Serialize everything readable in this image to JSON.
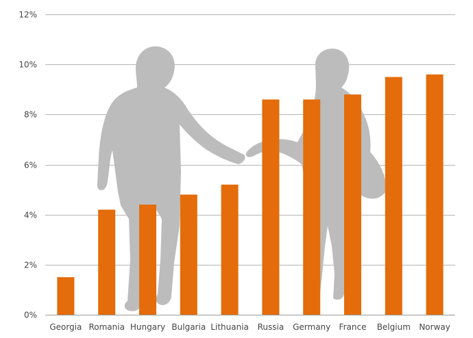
{
  "chart_data": {
    "type": "bar",
    "title": "",
    "xlabel": "",
    "ylabel": "",
    "categories": [
      "Georgia",
      "Romania",
      "Hungary",
      "Bulgaria",
      "Lithuania",
      "Russia",
      "Germany",
      "France",
      "Belgium",
      "Norway"
    ],
    "values": [
      1.5,
      4.2,
      4.4,
      4.8,
      5.2,
      8.6,
      8.6,
      8.8,
      9.5,
      9.6
    ],
    "ylim": [
      0,
      12
    ],
    "yticks": [
      0,
      2,
      4,
      6,
      8,
      10,
      12
    ],
    "ytick_labels": [
      "0%",
      "2%",
      "4%",
      "6%",
      "8%",
      "10%",
      "12%"
    ],
    "grid": true,
    "legend": "none",
    "bar_color": "#e46c0a",
    "grid_color": "#b5b5b5",
    "background_image": "couple-holding-hands-silhouette"
  }
}
